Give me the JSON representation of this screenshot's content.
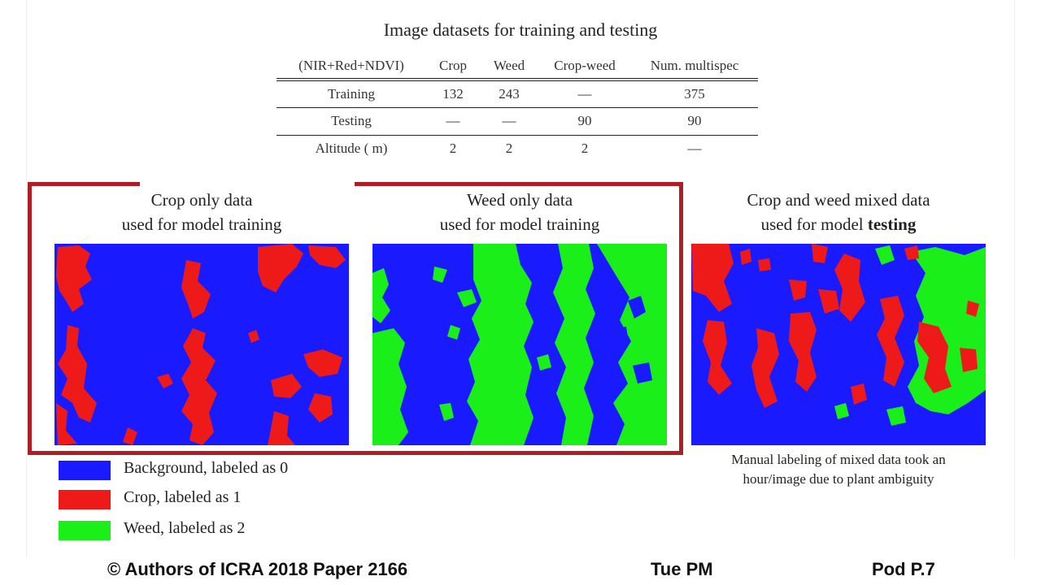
{
  "table": {
    "title": "Image datasets for training and testing",
    "headers": [
      "(NIR+Red+NDVI)",
      "Crop",
      "Weed",
      "Crop-weed",
      "Num. multispec"
    ],
    "rows": [
      [
        "Training",
        "132",
        "243",
        "—",
        "375"
      ],
      [
        "Testing",
        "—",
        "—",
        "90",
        "90"
      ],
      [
        "Altitude ( m)",
        "2",
        "2",
        "2",
        "—"
      ]
    ]
  },
  "panels": {
    "crop": {
      "line1": "Crop only data",
      "line2": "used for model training"
    },
    "weed": {
      "line1": "Weed only data",
      "line2": "used for model training"
    },
    "mixed": {
      "line1": "Crop and weed mixed data",
      "line2_prefix": "used for model ",
      "line2_bold": "testing"
    }
  },
  "caption": {
    "line1": "Manual labeling of mixed data took an",
    "line2": "hour/image due to plant ambiguity"
  },
  "legend": [
    {
      "label": "Background, labeled as 0",
      "color": "#1a1aff"
    },
    {
      "label": "Crop, labeled as 1",
      "color": "#ee1a1a"
    },
    {
      "label": "Weed, labeled as 2",
      "color": "#1aef1a"
    }
  ],
  "footer": {
    "authors": "© Authors of ICRA 2018 Paper 2166",
    "session": "Tue PM",
    "pod": "Pod P.7"
  },
  "colors": {
    "frame": "#b01d24",
    "background": "#1a1aff",
    "crop": "#ee1a1a",
    "weed": "#1aef1a"
  }
}
